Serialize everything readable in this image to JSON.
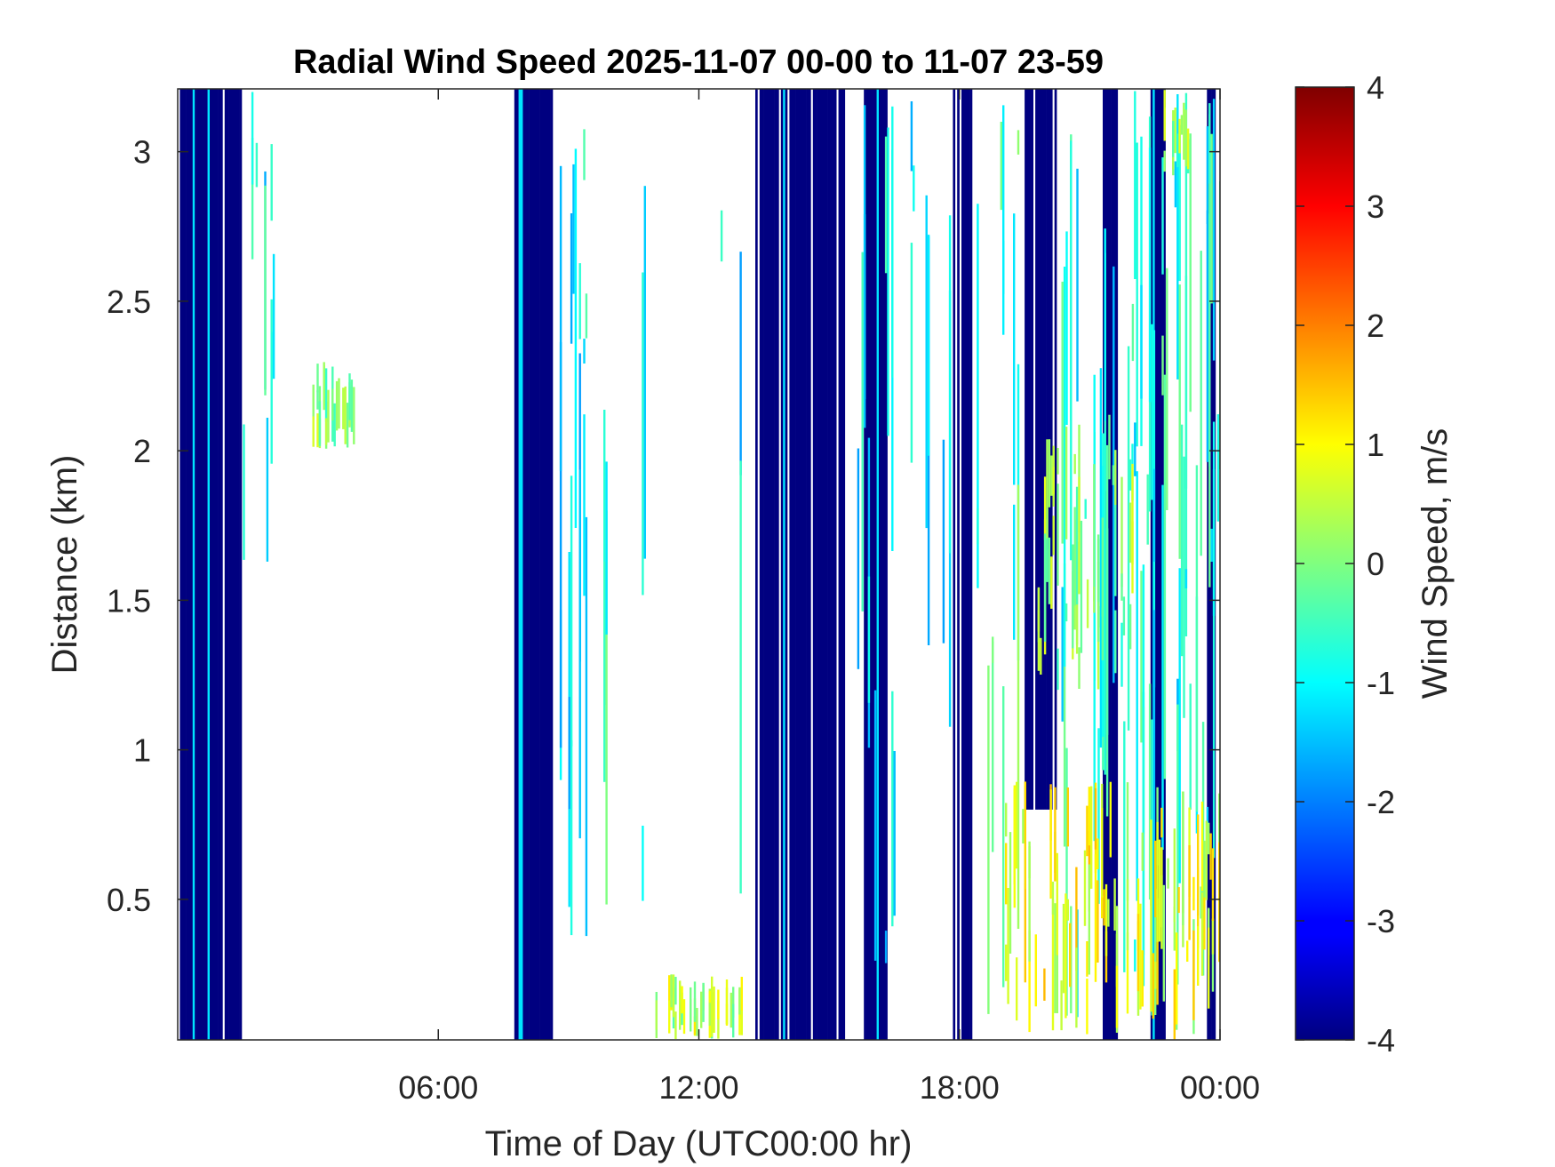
{
  "chart_data": {
    "type": "heatmap",
    "title": "Radial Wind Speed 2025-11-07 00-00 to 11-07 23-59",
    "xlabel": "Time of Day (UTC00:00 hr)",
    "ylabel": "Distance (km)",
    "colorbar_label": "Wind Speed, m/s",
    "x_unit": "hour",
    "xlim": [
      0,
      24
    ],
    "ylim": [
      0.03,
      3.21
    ],
    "clim": [
      -4,
      4
    ],
    "colormap": "jet",
    "grid": false,
    "x_ticks": [
      {
        "value": 6,
        "label": "06:00"
      },
      {
        "value": 12,
        "label": "12:00"
      },
      {
        "value": 18,
        "label": "18:00"
      },
      {
        "value": 24,
        "label": "00:00"
      }
    ],
    "y_ticks": [
      {
        "value": 0.5,
        "label": "0.5"
      },
      {
        "value": 1,
        "label": "1"
      },
      {
        "value": 1.5,
        "label": "1.5"
      },
      {
        "value": 2,
        "label": "2"
      },
      {
        "value": 2.5,
        "label": "2.5"
      },
      {
        "value": 3,
        "label": "3"
      }
    ],
    "colorbar_ticks": [
      {
        "value": -4,
        "label": "-4"
      },
      {
        "value": -3,
        "label": "-3"
      },
      {
        "value": -2,
        "label": "-2"
      },
      {
        "value": -1,
        "label": "-1"
      },
      {
        "value": 0,
        "label": "0"
      },
      {
        "value": 1,
        "label": "1"
      },
      {
        "value": 2,
        "label": "2"
      },
      {
        "value": 3,
        "label": "3"
      },
      {
        "value": 4,
        "label": "4"
      }
    ],
    "strong_negative_bands": [
      {
        "x0": 0.05,
        "x1": 1.45,
        "y0": 0.03,
        "y1": 3.21,
        "value": -4
      },
      {
        "x0": 7.75,
        "x1": 8.6,
        "y0": 0.03,
        "y1": 3.21,
        "value": -4
      },
      {
        "x0": 13.25,
        "x1": 15.35,
        "y0": 0.03,
        "y1": 3.21,
        "value": -4
      },
      {
        "x0": 15.8,
        "x1": 16.3,
        "y0": 0.03,
        "y1": 3.21,
        "value": -4
      },
      {
        "x0": 17.85,
        "x1": 18.25,
        "y0": 0.03,
        "y1": 3.21,
        "value": -4
      },
      {
        "x0": 19.5,
        "x1": 20.2,
        "y0": 0.8,
        "y1": 3.21,
        "value": -4
      },
      {
        "x0": 21.3,
        "x1": 21.6,
        "y0": 0.03,
        "y1": 3.21,
        "value": -4
      },
      {
        "x0": 22.4,
        "x1": 22.7,
        "y0": 0.03,
        "y1": 3.21,
        "value": -4
      },
      {
        "x0": 23.7,
        "x1": 23.85,
        "y0": 0.03,
        "y1": 3.21,
        "value": -4
      }
    ],
    "scatter_regions": [
      {
        "x0": 1.5,
        "x1": 2.3,
        "y0": 1.6,
        "y1": 3.21,
        "value": -1,
        "density": 0.35
      },
      {
        "x0": 3.1,
        "x1": 4.2,
        "y0": 2.0,
        "y1": 2.3,
        "value": 0,
        "density": 0.6
      },
      {
        "x0": 8.6,
        "x1": 9.6,
        "y0": 0.03,
        "y1": 3.21,
        "value": -1,
        "density": 0.3
      },
      {
        "x0": 9.8,
        "x1": 10.8,
        "y0": 0.03,
        "y1": 3.21,
        "value": -0.6,
        "density": 0.2
      },
      {
        "x0": 11.0,
        "x1": 13.2,
        "y0": 0.03,
        "y1": 0.25,
        "value": 0.4,
        "density": 0.5
      },
      {
        "x0": 12.4,
        "x1": 13.2,
        "y0": 0.03,
        "y1": 3.21,
        "value": -1,
        "density": 0.25
      },
      {
        "x0": 15.4,
        "x1": 17.8,
        "y0": 0.03,
        "y1": 3.21,
        "value": -1,
        "density": 0.3
      },
      {
        "x0": 18.3,
        "x1": 19.5,
        "y0": 0.03,
        "y1": 3.21,
        "value": -0.5,
        "density": 0.3
      },
      {
        "x0": 20.2,
        "x1": 24.0,
        "y0": 0.03,
        "y1": 3.21,
        "value": -0.8,
        "density": 0.45
      },
      {
        "x0": 19.8,
        "x1": 22.0,
        "y0": 1.2,
        "y1": 2.1,
        "value": 0,
        "density": 0.5
      },
      {
        "x0": 19.0,
        "x1": 24.0,
        "y0": 0.03,
        "y1": 0.9,
        "value": 0.8,
        "density": 0.55
      },
      {
        "x0": 22.7,
        "x1": 23.3,
        "y0": 2.9,
        "y1": 3.21,
        "value": 0,
        "density": 0.7
      }
    ]
  }
}
